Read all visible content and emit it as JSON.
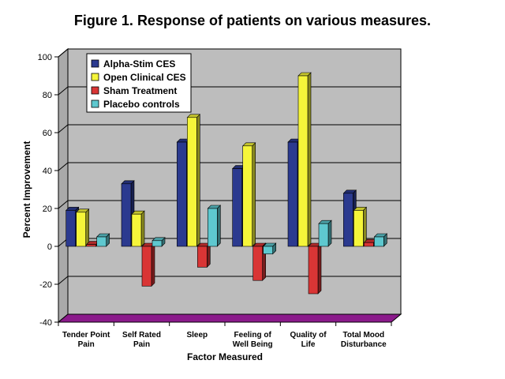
{
  "chart_data": {
    "type": "bar",
    "title": "Figure 1. Response of patients on various measures.",
    "xlabel": "Factor Measured",
    "ylabel": "Percent Improvement",
    "ylim": [
      -40,
      100
    ],
    "yticks": [
      -40,
      -20,
      0,
      20,
      40,
      60,
      80,
      100
    ],
    "categories": [
      [
        "Tender Point",
        "Pain"
      ],
      [
        "Self Rated",
        "Pain"
      ],
      [
        "Sleep"
      ],
      [
        "Feeling of",
        "Well Being"
      ],
      [
        "Quality of",
        "Life"
      ],
      [
        "Total Mood",
        "Disturbance"
      ]
    ],
    "series": [
      {
        "name": "Alpha-Stim CES",
        "color": "#2b3a8f",
        "values": [
          19,
          33,
          55,
          41,
          55,
          28
        ]
      },
      {
        "name": "Open Clinical CES",
        "color": "#f5f53a",
        "values": [
          18,
          17,
          68,
          53,
          90,
          19
        ]
      },
      {
        "name": "Sham Treatment",
        "color": "#d93535",
        "values": [
          1,
          -21,
          -11,
          -18,
          -25,
          2
        ]
      },
      {
        "name": "Placebo controls",
        "color": "#5ec8cf",
        "values": [
          5,
          3,
          20,
          -4,
          12,
          5
        ]
      }
    ],
    "legend_position": "top-left",
    "grid": true,
    "style": "3d"
  }
}
